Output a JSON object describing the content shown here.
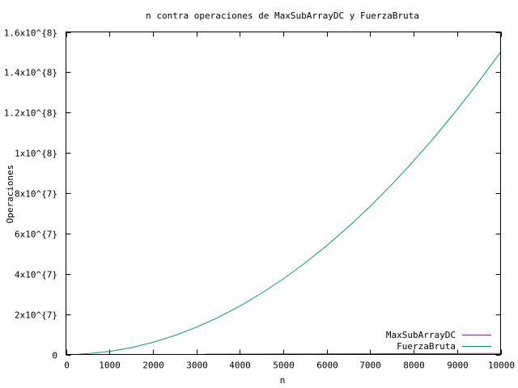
{
  "chart_data": {
    "type": "line",
    "title": "n contra operaciones de MaxSubArrayDC y FuerzaBruta",
    "xlabel": "n",
    "ylabel": "Operaciones",
    "xlim": [
      0,
      10000
    ],
    "ylim": [
      0,
      160000000
    ],
    "x_ticks": [
      0,
      1000,
      2000,
      3000,
      4000,
      5000,
      6000,
      7000,
      8000,
      9000,
      10000
    ],
    "x_tick_labels": [
      "0",
      "1000",
      "2000",
      "3000",
      "4000",
      "5000",
      "6000",
      "7000",
      "8000",
      "9000",
      "10000"
    ],
    "y_ticks": [
      0,
      20000000,
      40000000,
      60000000,
      80000000,
      100000000,
      120000000,
      140000000,
      160000000
    ],
    "y_tick_labels": [
      "0",
      "2x10^{7}",
      "4x10^{7}",
      "6x10^{7}",
      "8x10^{7}",
      "1x10^{8}",
      "1.2x10^{8}",
      "1.4x10^{8}",
      "1.6x10^{8}"
    ],
    "grid": false,
    "legend_position": "bottom-right",
    "series": [
      {
        "name": "MaxSubArrayDC",
        "color": "#a020a0",
        "x": [
          3200,
          4000,
          5000,
          6000,
          7000,
          8000,
          9000,
          10000
        ],
        "y": [
          150000,
          190000,
          240000,
          290000,
          340000,
          390000,
          440000,
          500000
        ]
      },
      {
        "name": "FuerzaBruta",
        "color": "#009e73",
        "x": [
          300,
          500,
          1000,
          1500,
          2000,
          2500,
          3000,
          3500,
          4000,
          4500,
          5000,
          5500,
          6000,
          6500,
          7000,
          7500,
          8000,
          8500,
          9000,
          9500,
          10000
        ],
        "y": [
          135000,
          375000,
          1500000,
          3375000,
          6000000,
          9375000,
          13500000,
          18375000,
          24000000,
          30375000,
          37500000,
          45375000,
          54000000,
          63375000,
          73500000,
          84375000,
          96000000,
          108375000,
          121500000,
          135375000,
          150000000
        ]
      }
    ]
  }
}
